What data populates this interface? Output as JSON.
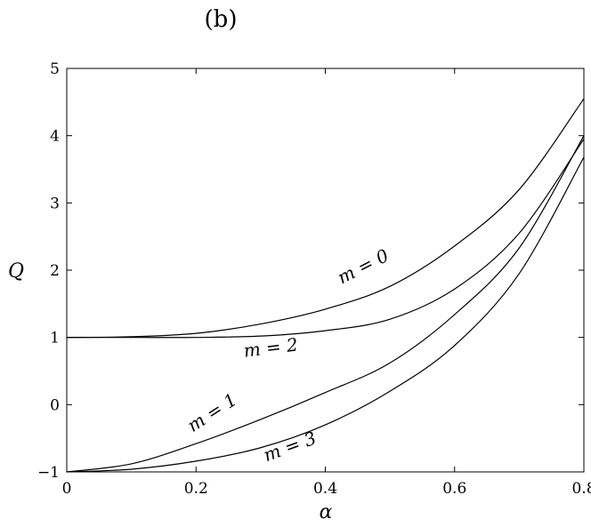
{
  "panel_label": "(b)",
  "chart_data": {
    "type": "line",
    "xlabel": "α",
    "ylabel": "Q",
    "xlim": [
      0,
      0.8
    ],
    "ylim": [
      -1,
      5
    ],
    "xticks": [
      0,
      0.2,
      0.4,
      0.6,
      0.8
    ],
    "xtick_labels": [
      "0",
      "0.2",
      "0.4",
      "0.6",
      "0.8"
    ],
    "yticks": [
      -1,
      0,
      1,
      2,
      3,
      4,
      5
    ],
    "ytick_labels": [
      "−1",
      "0",
      "1",
      "2",
      "3",
      "4",
      "5"
    ],
    "grid": false,
    "legend": "none",
    "x": [
      0.0,
      0.1,
      0.2,
      0.3,
      0.4,
      0.5,
      0.6,
      0.7,
      0.8
    ],
    "series": [
      {
        "name": "m = 0",
        "values": [
          1.0,
          1.01,
          1.06,
          1.2,
          1.42,
          1.76,
          2.36,
          3.2,
          4.55
        ]
      },
      {
        "name": "m = 2",
        "values": [
          1.0,
          1.0,
          1.0,
          1.02,
          1.1,
          1.27,
          1.72,
          2.55,
          3.95
        ]
      },
      {
        "name": "m = 1",
        "values": [
          -1.0,
          -0.88,
          -0.58,
          -0.22,
          0.18,
          0.62,
          1.34,
          2.33,
          4.0
        ]
      },
      {
        "name": "m = 3",
        "values": [
          -1.0,
          -0.96,
          -0.84,
          -0.64,
          -0.3,
          0.2,
          0.88,
          1.95,
          3.68
        ]
      }
    ],
    "annotations": [
      {
        "text": "m = 0",
        "series": "m = 0"
      },
      {
        "text": "m = 2",
        "series": "m = 2"
      },
      {
        "text": "m = 1",
        "series": "m = 1"
      },
      {
        "text": "m = 3",
        "series": "m = 3"
      }
    ]
  }
}
